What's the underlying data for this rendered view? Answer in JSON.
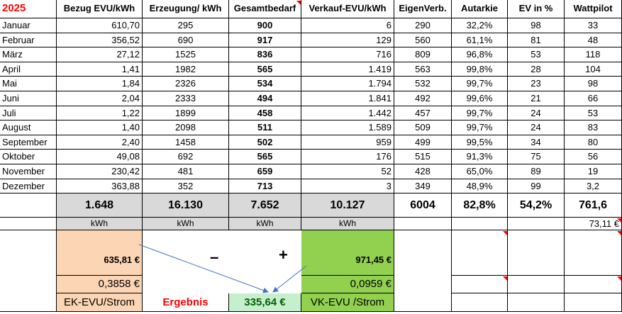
{
  "year": "2025",
  "headers": [
    "Bezug EVU/kWh",
    "Erzeugung/ kWh",
    "Gesamtbedarf",
    "Verkauf-EVU/kWh",
    "EigenVerb.",
    "Autarkie",
    "EV in %",
    "Wattpilot"
  ],
  "rows": [
    {
      "month": "Januar",
      "bezug": "610,70",
      "erzeugung": "295",
      "bedarf": "900",
      "verkauf": "6",
      "eigen": "290",
      "autarkie": "32,2%",
      "ev": "98",
      "watt": "33"
    },
    {
      "month": "Februar",
      "bezug": "356,52",
      "erzeugung": "690",
      "bedarf": "917",
      "verkauf": "129",
      "eigen": "560",
      "autarkie": "61,1%",
      "ev": "81",
      "watt": "48"
    },
    {
      "month": "März",
      "bezug": "27,12",
      "erzeugung": "1525",
      "bedarf": "836",
      "verkauf": "716",
      "eigen": "809",
      "autarkie": "96,8%",
      "ev": "53",
      "watt": "118"
    },
    {
      "month": "April",
      "bezug": "1,41",
      "erzeugung": "1982",
      "bedarf": "565",
      "verkauf": "1.419",
      "eigen": "563",
      "autarkie": "99,8%",
      "ev": "28",
      "watt": "104"
    },
    {
      "month": "Mai",
      "bezug": "1,84",
      "erzeugung": "2326",
      "bedarf": "534",
      "verkauf": "1.794",
      "eigen": "532",
      "autarkie": "99,7%",
      "ev": "23",
      "watt": "98"
    },
    {
      "month": "Juni",
      "bezug": "2,04",
      "erzeugung": "2333",
      "bedarf": "494",
      "verkauf": "1.841",
      "eigen": "492",
      "autarkie": "99,6%",
      "ev": "21",
      "watt": "66"
    },
    {
      "month": "Juli",
      "bezug": "1,22",
      "erzeugung": "1899",
      "bedarf": "458",
      "verkauf": "1.442",
      "eigen": "457",
      "autarkie": "99,7%",
      "ev": "24",
      "watt": "53"
    },
    {
      "month": "August",
      "bezug": "1,40",
      "erzeugung": "2098",
      "bedarf": "511",
      "verkauf": "1.589",
      "eigen": "509",
      "autarkie": "99,7%",
      "ev": "24",
      "watt": "83"
    },
    {
      "month": "September",
      "bezug": "2,40",
      "erzeugung": "1458",
      "bedarf": "502",
      "verkauf": "959",
      "eigen": "499",
      "autarkie": "99,5%",
      "ev": "34",
      "watt": "80"
    },
    {
      "month": "Oktober",
      "bezug": "49,08",
      "erzeugung": "692",
      "bedarf": "565",
      "verkauf": "176",
      "eigen": "515",
      "autarkie": "91,3%",
      "ev": "75",
      "watt": "56"
    },
    {
      "month": "November",
      "bezug": "230,42",
      "erzeugung": "481",
      "bedarf": "659",
      "verkauf": "52",
      "eigen": "428",
      "autarkie": "65,0%",
      "ev": "89",
      "watt": "19"
    },
    {
      "month": "Dezember",
      "bezug": "363,88",
      "erzeugung": "352",
      "bedarf": "713",
      "verkauf": "3",
      "eigen": "349",
      "autarkie": "48,9%",
      "ev": "99",
      "watt": "3,2"
    }
  ],
  "totals": {
    "bezug": "1.648",
    "erzeugung": "16.130",
    "bedarf": "7.652",
    "verkauf": "10.127",
    "eigen": "6004",
    "autarkie": "82,8%",
    "ev": "54,2%",
    "watt": "761,6"
  },
  "units": {
    "bezug": "kWh",
    "erzeugung": "kWh",
    "bedarf": "kWh",
    "verkauf": "kWh",
    "watt": "73,11 €"
  },
  "summary": {
    "ek_amount": "635,81 €",
    "vk_amount": "971,45 €",
    "minus": "–",
    "plus": "+",
    "ek_price": "0,3858 €",
    "vk_price": "0,0959 €",
    "ek_label": "EK-EVU/Strom",
    "vk_label": "VK-EVU /Strom",
    "ergebnis_label": "Ergebnis",
    "ergebnis_value": "335,64 €"
  },
  "colors": {
    "year": "#ff0000",
    "ergebnis_label": "#ff0000",
    "ergebnis_value": "#006100",
    "peach": "#fcd5b4",
    "green": "#92d050",
    "light_green": "#c6efce",
    "grey": "#d9d9d9",
    "arrow": "#4472c4"
  }
}
